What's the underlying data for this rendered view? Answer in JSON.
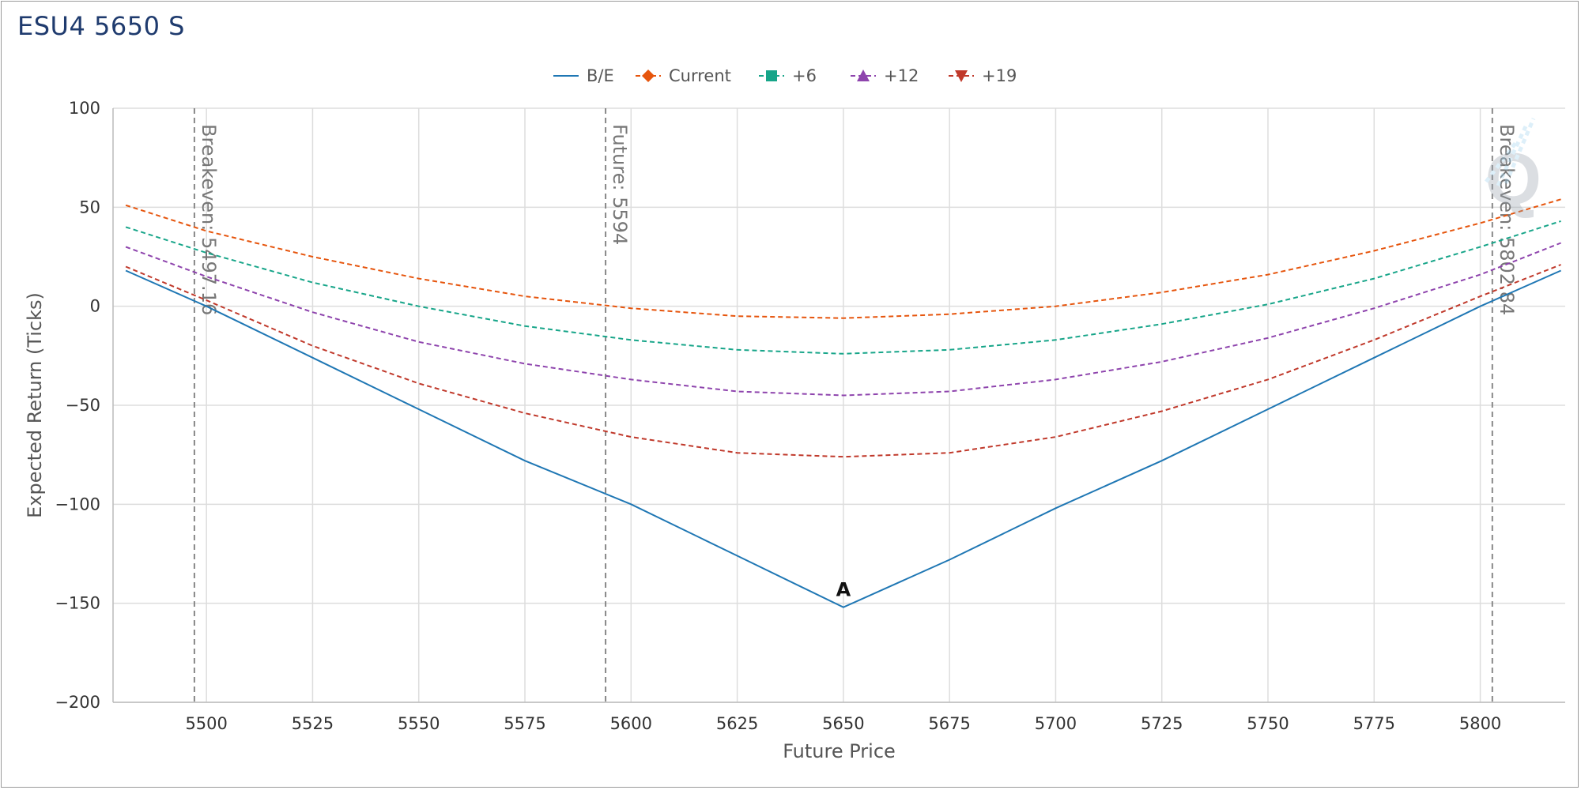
{
  "title": "ESU4 5650 S",
  "colors": {
    "be": "#1f77b4",
    "current": "#e6550d",
    "p6": "#17a589",
    "p12": "#8e44ad",
    "p19": "#c0392b",
    "grid": "#dddddd",
    "marker_line": "#888888"
  },
  "chart_data": {
    "type": "line",
    "title": "ESU4 5650 S",
    "xlabel": "Future Price",
    "ylabel": "Expected Return (Ticks)",
    "xlim": [
      5478,
      5820
    ],
    "ylim": [
      -200,
      100
    ],
    "x_ticks": [
      5500,
      5525,
      5550,
      5575,
      5600,
      5625,
      5650,
      5675,
      5700,
      5725,
      5750,
      5775,
      5800
    ],
    "y_ticks": [
      100,
      50,
      0,
      -50,
      -100,
      -150,
      -200
    ],
    "grid": true,
    "legend_position": "top-center",
    "x": [
      5481,
      5500,
      5525,
      5550,
      5575,
      5600,
      5625,
      5650,
      5675,
      5700,
      5725,
      5750,
      5775,
      5800,
      5819
    ],
    "series": [
      {
        "name": "B/E",
        "key": "be",
        "dash": false,
        "marker": "none",
        "values": [
          18,
          0,
          -26,
          -52,
          -78,
          -100,
          -126,
          -152,
          -128,
          -102,
          -78,
          -52,
          -26,
          0,
          18
        ]
      },
      {
        "name": "Current",
        "key": "current",
        "dash": true,
        "marker": "diamond",
        "values": [
          51,
          38,
          25,
          14,
          5,
          -1,
          -5,
          -6,
          -4,
          0,
          7,
          16,
          28,
          42,
          54
        ]
      },
      {
        "name": "+6",
        "key": "p6",
        "dash": true,
        "marker": "square",
        "values": [
          40,
          27,
          12,
          0,
          -10,
          -17,
          -22,
          -24,
          -22,
          -17,
          -9,
          1,
          14,
          30,
          43
        ]
      },
      {
        "name": "+12",
        "key": "p12",
        "dash": true,
        "marker": "triangle-up",
        "values": [
          30,
          15,
          -3,
          -18,
          -29,
          -37,
          -43,
          -45,
          -43,
          -37,
          -28,
          -16,
          -1,
          16,
          32
        ]
      },
      {
        "name": "+19",
        "key": "p19",
        "dash": true,
        "marker": "triangle-down",
        "values": [
          20,
          3,
          -20,
          -39,
          -54,
          -66,
          -74,
          -76,
          -74,
          -66,
          -53,
          -37,
          -17,
          5,
          21
        ]
      }
    ],
    "vertical_markers": [
      {
        "x": 5497.16,
        "label": "Breakeven: 5497.16"
      },
      {
        "x": 5594,
        "label": "Future: 5594"
      },
      {
        "x": 5802.84,
        "label": "Breakeven: 5802.84"
      }
    ],
    "annotations": [
      {
        "x": 5650,
        "y": -152,
        "text": "A"
      }
    ]
  }
}
